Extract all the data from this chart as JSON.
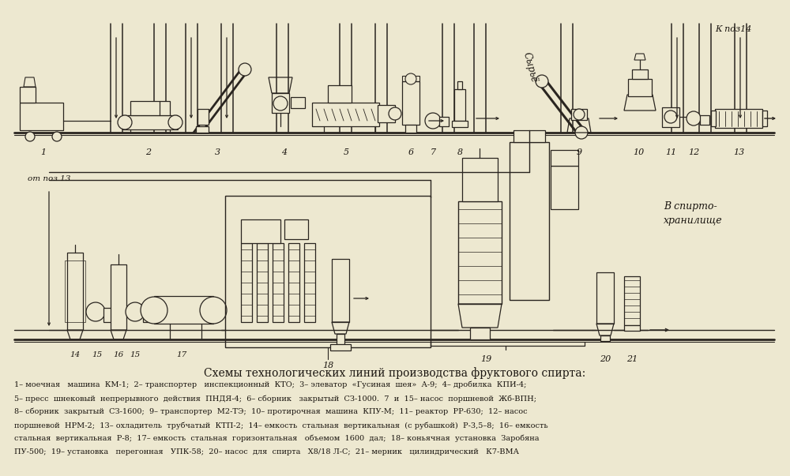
{
  "background_color": "#ede8d0",
  "line_color": "#2a2520",
  "text_color": "#1a1510",
  "figsize": [
    10.0,
    6.03
  ],
  "dpi": 100,
  "title_text": "Схемы технологических линий производства фруктового спирта:",
  "caption_line1": "1– моечная   машина  КМ-1;  2– транспортер   инспекционный  КТО;  3– элеватор  «Гусиная  шея»  А-9;  4– дробилка  КПИ-4;",
  "caption_line2": "5– пресс  шнековый  непрерывного  действия  ПНДЯ-4;  6– сборник   закрытый  СЗ-1000.  7  и  15– насос  поршневой  Жб-ВПН;",
  "caption_line3": "8– сборник  закрытый  СЗ-1600;  9– транспортер  М2-ТЭ;  10– протирочная  машина  КПУ-М;  11– реактор  РР-630;  12– насос",
  "caption_line4": "поршневой  НРМ-2;  13– охладитель  трубчатый  КТП-2;  14– емкость  стальная  вертикальная  (с рубашкой)  Р-3,5–8;  16– емкость",
  "caption_line5": "стальная  вертикальная  Р-8;  17– емкость  стальная  горизонтальная   объемом  1600  дал;  18– коньячная  установка  Заробяна",
  "caption_line6": "ПУ-500;  19– установка   перегонная   УПК-58;  20– насос  для  спирта   Х8/18 Л-С;  21– мерник   цилиндрический   К7-ВМА"
}
